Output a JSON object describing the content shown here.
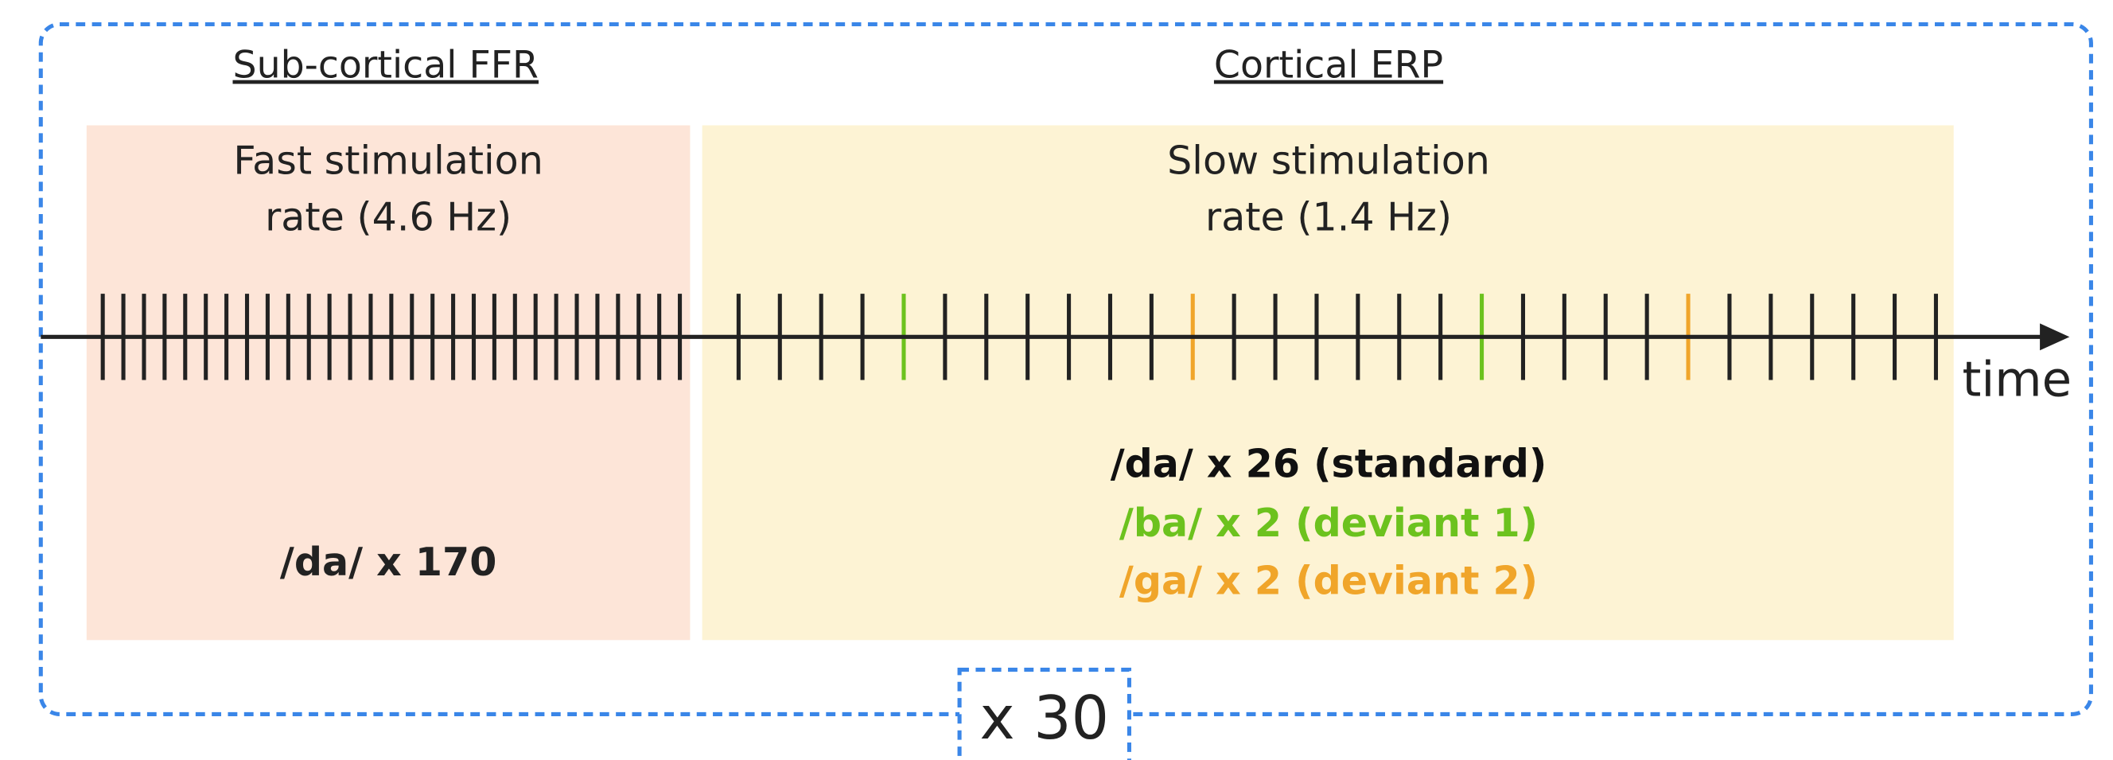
{
  "sections": [
    {
      "heading": "Sub-cortical FFR",
      "label_lines": [
        "Fast stimulation",
        "rate (4.6 Hz)"
      ],
      "stimuli": [
        "/da/ x 170"
      ]
    },
    {
      "heading": "Cortical ERP",
      "label_lines": [
        "Slow stimulation",
        "rate (1.4 Hz)"
      ],
      "stimuli": [
        "/da/ x 26 (standard)",
        "/ba/ x 2 (deviant 1)",
        "/ga/ x 2 (deviant 2)"
      ]
    }
  ],
  "axis_label": "time",
  "repeat_label": "x 30"
}
